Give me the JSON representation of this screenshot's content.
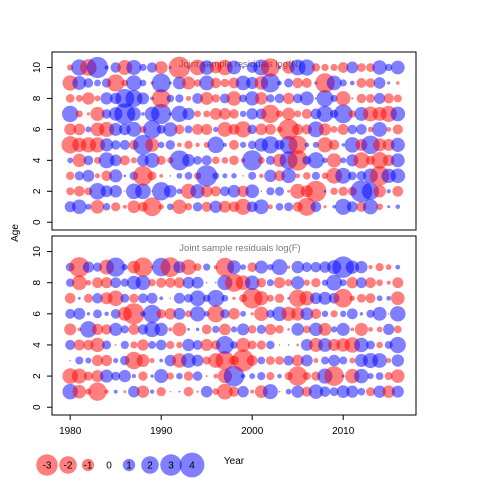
{
  "chart_data": {
    "type": "scatter",
    "ylabel": "Age",
    "xlabel": "Year",
    "xlim": [
      1978,
      2018
    ],
    "x_ticks": [
      1980,
      1990,
      2000,
      2010
    ],
    "y_ticks": [
      0,
      2,
      4,
      6,
      8,
      10
    ],
    "colors": {
      "negative": "#ff0000",
      "positive": "#0000ff",
      "opacity": 0.5
    },
    "panels": [
      {
        "title": "Joint sample residuals log(N)",
        "year_range": [
          1980,
          2016
        ],
        "ages": [
          1,
          2,
          3,
          4,
          5,
          6,
          7,
          8,
          9,
          10
        ],
        "ylim": [
          -0.5,
          11
        ],
        "seed": 17
      },
      {
        "title": "Joint sample residuals log(F)",
        "year_range": [
          1980,
          2016
        ],
        "ages": [
          1,
          2,
          3,
          4,
          5,
          6,
          7,
          8,
          9
        ],
        "ylim": [
          -0.5,
          11
        ],
        "seed": 53
      }
    ],
    "legend": {
      "placement": "bottom-left",
      "values": [
        -3,
        -2,
        -1,
        0,
        1,
        2,
        3,
        4
      ],
      "labels": [
        "-3",
        "-2",
        "-1",
        "0",
        "1",
        "2",
        "3",
        "4"
      ]
    }
  }
}
